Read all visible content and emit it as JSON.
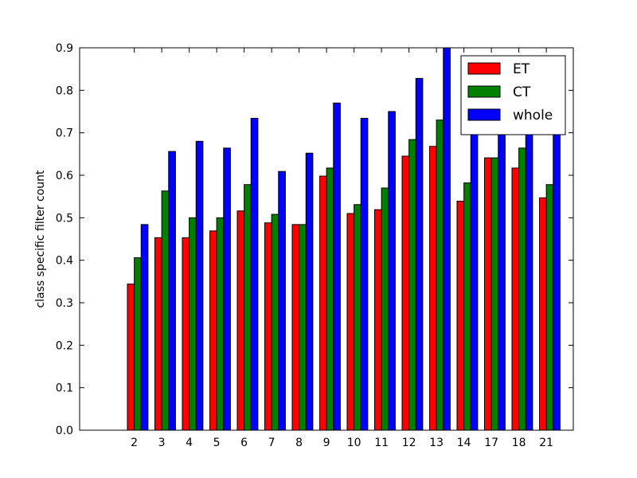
{
  "chart_data": {
    "type": "bar",
    "title": "",
    "xlabel": "",
    "ylabel": "class specific filter count",
    "ylim": [
      0,
      0.9
    ],
    "yticks": [
      "0.0",
      "0.1",
      "0.2",
      "0.3",
      "0.4",
      "0.5",
      "0.6",
      "0.7",
      "0.8",
      "0.9"
    ],
    "categories": [
      "2",
      "3",
      "4",
      "5",
      "6",
      "7",
      "8",
      "9",
      "10",
      "11",
      "12",
      "13",
      "14",
      "17",
      "18",
      "21"
    ],
    "series": [
      {
        "name": "ET",
        "color": "#ff0000",
        "values": [
          0.344,
          0.453,
          0.453,
          0.469,
          0.516,
          0.488,
          0.484,
          0.598,
          0.51,
          0.519,
          0.645,
          0.668,
          0.539,
          0.641,
          0.617,
          0.547
        ]
      },
      {
        "name": "CT",
        "color": "#008000",
        "values": [
          0.406,
          0.563,
          0.5,
          0.5,
          0.578,
          0.508,
          0.484,
          0.617,
          0.531,
          0.57,
          0.684,
          0.73,
          0.582,
          0.641,
          0.664,
          0.578
        ]
      },
      {
        "name": "whole",
        "color": "#0000ff",
        "values": [
          0.484,
          0.656,
          0.68,
          0.664,
          0.734,
          0.609,
          0.652,
          0.77,
          0.734,
          0.75,
          0.828,
          0.9,
          0.85,
          0.85,
          0.83,
          0.8
        ]
      }
    ],
    "legend_position": "top-right",
    "grid": false
  }
}
